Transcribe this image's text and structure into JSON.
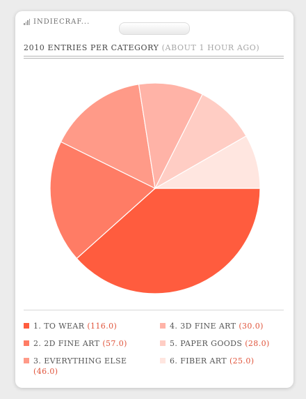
{
  "app": {
    "title": "INDIECRAF...",
    "icon": "signal-bars-icon"
  },
  "chart_data": {
    "type": "pie",
    "title": "2010 ENTRIES PER CATEGORY",
    "subtitle": "(ABOUT 1 HOUR AGO)",
    "slices": [
      {
        "label": "1. TO WEAR",
        "value": 116.0,
        "display": "(116.0)",
        "color": "#ff5c3e"
      },
      {
        "label": "2. 2D FINE ART",
        "value": 57.0,
        "display": "(57.0)",
        "color": "#ff7c65"
      },
      {
        "label": "3. EVERYTHING ELSE",
        "value": 46.0,
        "display": "(46.0)",
        "color": "#ff9a88"
      },
      {
        "label": "4. 3D FINE ART",
        "value": 30.0,
        "display": "(30.0)",
        "color": "#ffb3a7"
      },
      {
        "label": "5. PAPER GOODS",
        "value": 28.0,
        "display": "(28.0)",
        "color": "#ffcdc4"
      },
      {
        "label": "6. FIBER ART",
        "value": 25.0,
        "display": "(25.0)",
        "color": "#ffe6e0"
      }
    ],
    "start_angle": "3 o'clock",
    "direction": "clockwise"
  }
}
